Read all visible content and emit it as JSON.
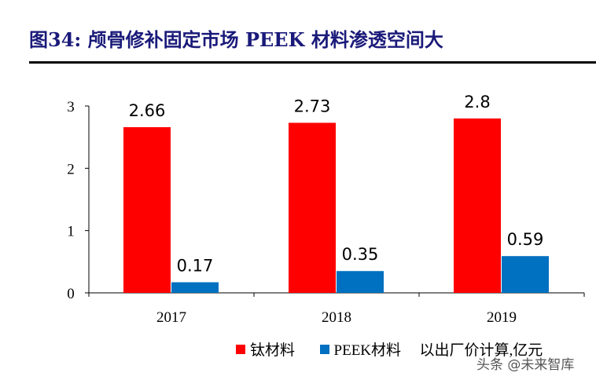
{
  "title": "图34:  颅骨修补固定市场 PEEK 材料渗透空间大",
  "watermark": "头条 @未来智库",
  "chart_data": {
    "type": "bar",
    "categories": [
      "2017",
      "2018",
      "2019"
    ],
    "series": [
      {
        "name": "钛材料",
        "color": "#ff0000",
        "values": [
          2.66,
          2.73,
          2.8
        ],
        "labels": [
          "2.66",
          "2.73",
          "2.8"
        ]
      },
      {
        "name": "PEEK材料",
        "color": "#0070c0",
        "values": [
          0.17,
          0.35,
          0.59
        ],
        "labels": [
          "0.17",
          "0.35",
          "0.59"
        ]
      }
    ],
    "yticks": [
      "0",
      "1",
      "2",
      "3"
    ],
    "ylim": [
      0,
      3
    ],
    "note": "以出厂价计算,亿元",
    "legend_position": "bottom"
  }
}
